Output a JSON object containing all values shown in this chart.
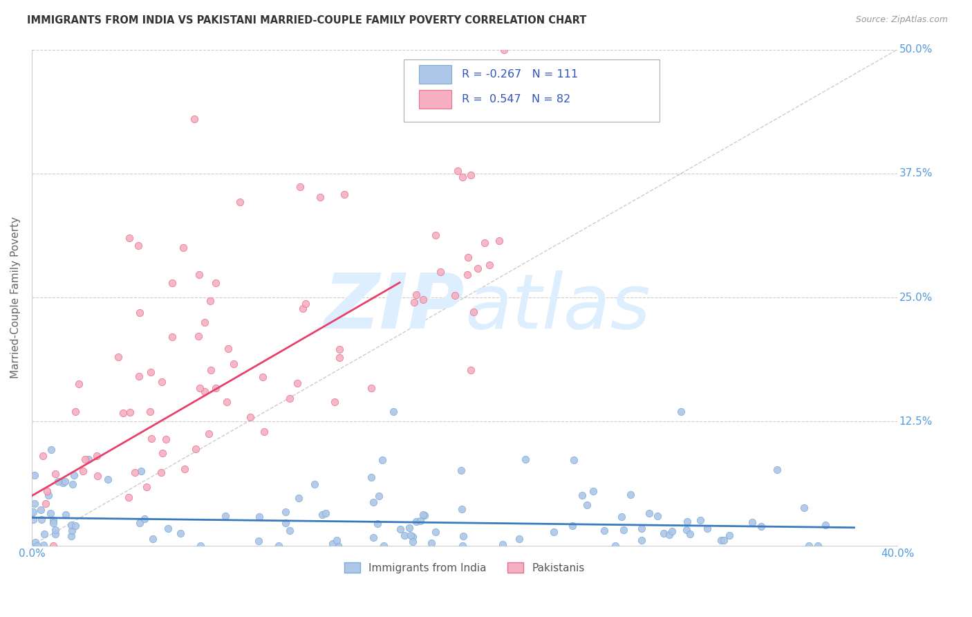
{
  "title": "IMMIGRANTS FROM INDIA VS PAKISTANI MARRIED-COUPLE FAMILY POVERTY CORRELATION CHART",
  "source": "Source: ZipAtlas.com",
  "ylabel": "Married-Couple Family Poverty",
  "xlim": [
    0.0,
    0.4
  ],
  "ylim": [
    0.0,
    0.5
  ],
  "ytick_labels": [
    "12.5%",
    "25.0%",
    "37.5%",
    "50.0%"
  ],
  "ytick_values": [
    0.125,
    0.25,
    0.375,
    0.5
  ],
  "india_color": "#aec6e8",
  "india_edge": "#7aadd4",
  "pakistan_color": "#f5afc0",
  "pakistan_edge": "#e87090",
  "india_line_color": "#3a7bbf",
  "pakistan_line_color": "#e8406a",
  "diagonal_color": "#cccccc",
  "legend_R_india": "-0.267",
  "legend_N_india": "111",
  "legend_R_pakistan": "0.547",
  "legend_N_pakistan": "82",
  "legend_label_india": "Immigrants from India",
  "legend_label_pakistan": "Pakistanis",
  "background_color": "#ffffff",
  "grid_color": "#cccccc",
  "title_color": "#333333",
  "axis_label_color": "#666666",
  "tick_label_color": "#5599dd",
  "watermark_color": "#ddeeff",
  "india_R": -0.267,
  "pakistan_R": 0.547,
  "india_N": 111,
  "pakistan_N": 82
}
